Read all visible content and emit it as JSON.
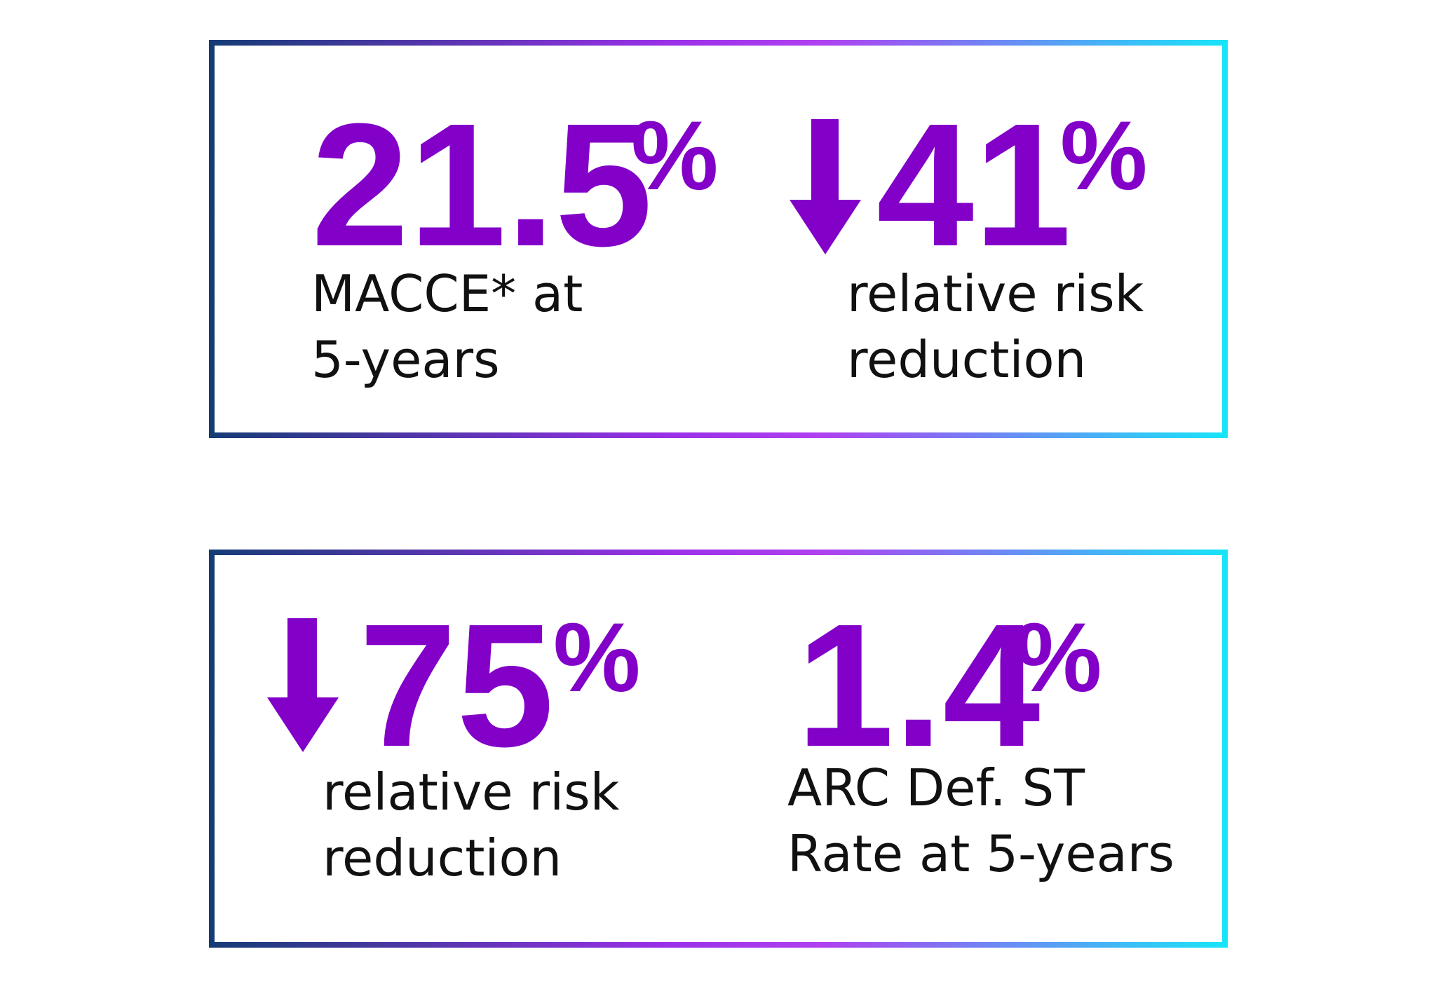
{
  "panels": [
    {
      "stats": [
        {
          "value": "21.5",
          "unit": "%",
          "label": [
            "MACCE* at",
            "5-years"
          ]
        },
        {
          "value": "41",
          "unit": "%",
          "label": [
            "relative risk",
            "reduction"
          ]
        }
      ]
    },
    {
      "stats": [
        {
          "value": "75",
          "unit": "%",
          "label": [
            "relative risk",
            "reduction"
          ]
        },
        {
          "value": "1.4",
          "unit": "%",
          "label": [
            "ARC Def. ST",
            "Rate at 5-years"
          ]
        }
      ]
    }
  ]
}
